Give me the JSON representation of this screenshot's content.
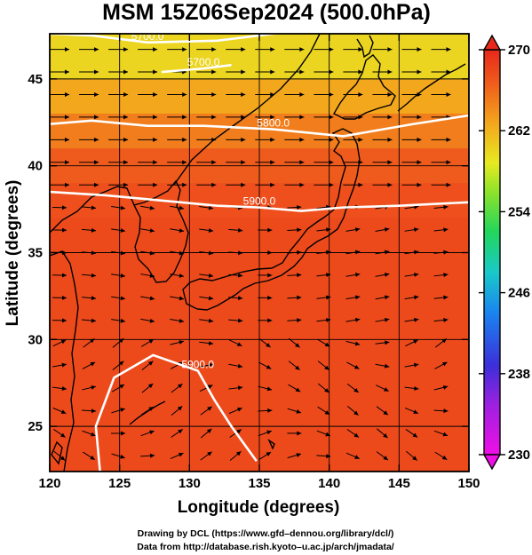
{
  "chart_data": {
    "type": "heatmap",
    "title": "MSM 15Z06Sep2024 (500.0hPa)",
    "xlabel": "Longitude (degrees)",
    "ylabel": "Latitude  (degrees)",
    "xlim": [
      120,
      150
    ],
    "ylim": [
      22.4,
      47.6
    ],
    "x_ticks": [
      120,
      125,
      130,
      135,
      140,
      145,
      150
    ],
    "y_ticks": [
      25,
      30,
      35,
      40,
      45
    ],
    "grid": true,
    "colorbar": {
      "range": [
        230,
        270
      ],
      "ticks": [
        270,
        262,
        254,
        246,
        238,
        230
      ],
      "colors": [
        "#ef0fe6",
        "#3c2fd9",
        "#1a84f0",
        "#19c9c9",
        "#22d65c",
        "#8fe32a",
        "#e7ea21",
        "#f3a51d",
        "#ef5a1c",
        "#e8281c"
      ]
    },
    "field": {
      "rows_lat": [
        46,
        44,
        42,
        40,
        38,
        36,
        34,
        32,
        30,
        28,
        26,
        24
      ],
      "values": [
        258,
        261,
        263.5,
        265.5,
        266.5,
        267,
        267,
        267,
        267,
        267,
        267,
        267
      ]
    },
    "contours": [
      {
        "label": "5700.0",
        "points": [
          [
            120,
            47.6
          ],
          [
            123,
            47.5
          ],
          [
            127,
            47.1
          ],
          [
            132,
            47.2
          ],
          [
            137,
            47.7
          ]
        ]
      },
      {
        "label": "5700.0",
        "points": [
          [
            128,
            45.4
          ],
          [
            131,
            45.6
          ],
          [
            133,
            45.8
          ]
        ]
      },
      {
        "label": "5800.0",
        "points": [
          [
            120,
            42.4
          ],
          [
            123,
            42.6
          ],
          [
            127,
            42.3
          ],
          [
            131,
            42.3
          ],
          [
            136,
            42.1
          ],
          [
            141,
            41.7
          ],
          [
            146,
            42.4
          ],
          [
            150,
            42.9
          ]
        ]
      },
      {
        "label": "5900.0",
        "points": [
          [
            120,
            38.5
          ],
          [
            124,
            38.3
          ],
          [
            128,
            38.0
          ],
          [
            132,
            37.7
          ],
          [
            135,
            37.6
          ],
          [
            138,
            37.4
          ],
          [
            141,
            37.6
          ],
          [
            145,
            37.7
          ],
          [
            150,
            37.9
          ]
        ]
      },
      {
        "label": "5900.0",
        "points": [
          [
            123.6,
            22.4
          ],
          [
            123.3,
            25.0
          ],
          [
            124.6,
            27.8
          ],
          [
            127.4,
            29.1
          ],
          [
            130.6,
            28.2
          ],
          [
            131.8,
            26.5
          ],
          [
            133.0,
            25.0
          ],
          [
            134.8,
            23.0
          ]
        ]
      }
    ],
    "credits": [
      "Drawing by DCL (https://www.gfd–dennou.org/library/dcl/)",
      "Data from http://database.rish.kyoto–u.ac.jp/arch/jmadata/"
    ]
  }
}
